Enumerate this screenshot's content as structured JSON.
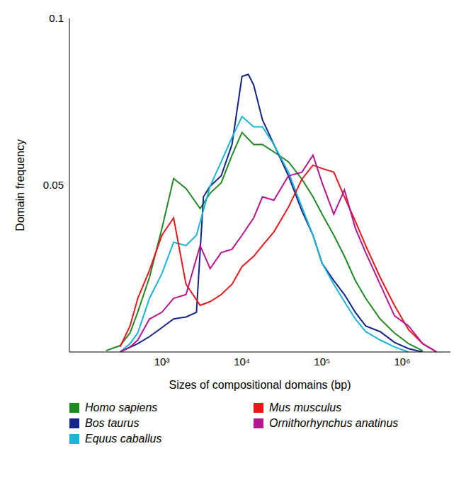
{
  "chart_data": {
    "type": "line",
    "x_label": "Sizes of compositional domains (bp)",
    "y_label": "Domain frequency",
    "log": "x",
    "xlim": [
      70,
      4000000
    ],
    "xticks": [
      {
        "value": 1000,
        "label": "10³"
      },
      {
        "value": 10000,
        "label": "10⁴"
      },
      {
        "value": 100000,
        "label": "10⁵"
      },
      {
        "value": 1000000,
        "label": "10⁶"
      }
    ],
    "ylim": [
      0,
      0.1
    ],
    "yticks": [
      0.05,
      0.1
    ],
    "grid": false,
    "legend": "bottom",
    "series": [
      {
        "name": "Homo sapiens",
        "color": "#1f8a24",
        "x": [
          200,
          300,
          400,
          500,
          700,
          1000,
          1400,
          2000,
          3000,
          4000,
          5500,
          7500,
          10000,
          14000,
          18000,
          25000,
          38000,
          56000,
          77000,
          100000,
          140000,
          190000,
          260000,
          350000,
          530000,
          800000,
          1200000,
          1800000
        ],
        "values": [
          0.0004,
          0.0019,
          0.0057,
          0.012,
          0.0224,
          0.037,
          0.052,
          0.049,
          0.043,
          0.0476,
          0.0507,
          0.059,
          0.0658,
          0.0622,
          0.0622,
          0.06,
          0.057,
          0.0518,
          0.0465,
          0.0413,
          0.035,
          0.0287,
          0.0214,
          0.0161,
          0.0099,
          0.0057,
          0.0025,
          0.0004
        ]
      },
      {
        "name": "Bos taurus",
        "color": "#14238c",
        "x": [
          300,
          500,
          700,
          1000,
          1400,
          2000,
          2700,
          3300,
          4000,
          5500,
          7500,
          10000,
          12000,
          14000,
          18000,
          25000,
          38000,
          56000,
          77000,
          100000,
          140000,
          190000,
          260000,
          350000,
          530000,
          800000,
          1200000,
          1800000
        ],
        "values": [
          0,
          0.0025,
          0.0046,
          0.0073,
          0.0099,
          0.0105,
          0.0119,
          0.0465,
          0.0497,
          0.0528,
          0.0622,
          0.0826,
          0.0832,
          0.08,
          0.0696,
          0.0622,
          0.0528,
          0.0423,
          0.035,
          0.0266,
          0.0214,
          0.0172,
          0.0119,
          0.0078,
          0.0061,
          0.0029,
          0.001,
          0
        ]
      },
      {
        "name": "Equus caballus",
        "color": "#1ab4d6",
        "x": [
          300,
          400,
          500,
          700,
          1000,
          1400,
          2000,
          2700,
          4000,
          5500,
          7500,
          10000,
          14000,
          18000,
          25000,
          38000,
          56000,
          77000,
          100000,
          140000,
          190000,
          260000,
          350000,
          530000,
          800000,
          1200000
        ],
        "values": [
          0,
          0.0025,
          0.0057,
          0.0161,
          0.0235,
          0.0329,
          0.0319,
          0.035,
          0.0497,
          0.057,
          0.0643,
          0.0706,
          0.0675,
          0.0675,
          0.0622,
          0.0539,
          0.0434,
          0.035,
          0.0266,
          0.0203,
          0.0151,
          0.0099,
          0.0061,
          0.0036,
          0.0015,
          0
        ]
      },
      {
        "name": "Mus musculus",
        "color": "#e8171c",
        "x": [
          300,
          400,
          500,
          700,
          1000,
          1400,
          2000,
          3000,
          4000,
          5500,
          7500,
          10000,
          14000,
          18000,
          25000,
          38000,
          56000,
          77000,
          100000,
          140000,
          190000,
          260000,
          350000,
          530000,
          800000,
          1200000,
          1800000,
          2700000
        ],
        "values": [
          0.0015,
          0.0078,
          0.0161,
          0.0245,
          0.035,
          0.0402,
          0.0203,
          0.014,
          0.0151,
          0.0172,
          0.0203,
          0.0256,
          0.0287,
          0.0319,
          0.036,
          0.0434,
          0.0518,
          0.056,
          0.055,
          0.0539,
          0.0465,
          0.0392,
          0.0319,
          0.0224,
          0.014,
          0.0067,
          0.0025,
          0
        ]
      },
      {
        "name": "Ornithorhynchus anatinus",
        "color": "#b4168f",
        "x": [
          300,
          400,
          500,
          700,
          1000,
          1400,
          2000,
          3000,
          4000,
          5500,
          7500,
          10000,
          14000,
          18000,
          25000,
          38000,
          56000,
          77000,
          100000,
          140000,
          190000,
          260000,
          350000,
          530000,
          800000,
          1200000,
          1800000,
          2700000
        ],
        "values": [
          0,
          0.0015,
          0.0036,
          0.0099,
          0.0119,
          0.0161,
          0.0172,
          0.0319,
          0.025,
          0.0298,
          0.0308,
          0.035,
          0.0402,
          0.0465,
          0.0455,
          0.0528,
          0.0539,
          0.059,
          0.0507,
          0.0413,
          0.0486,
          0.0371,
          0.0298,
          0.0203,
          0.0109,
          0.0078,
          0.0025,
          0
        ]
      }
    ]
  }
}
